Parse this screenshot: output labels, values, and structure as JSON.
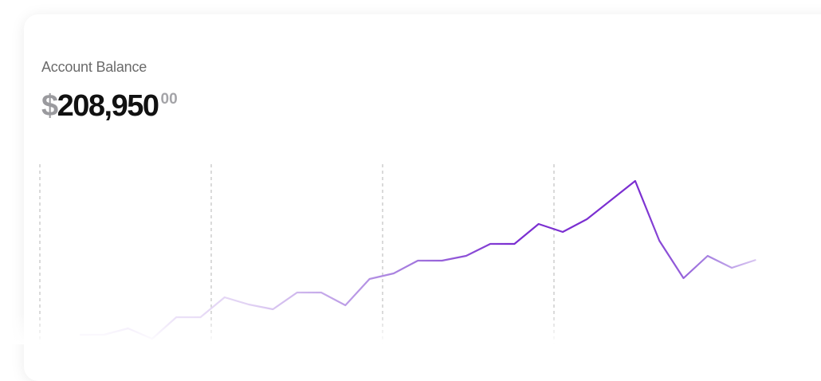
{
  "chart_data": {
    "type": "line",
    "title": "Account Balance",
    "currency": "$",
    "amount": "208,950",
    "cents": "00",
    "values": [
      12,
      12,
      20,
      7,
      34,
      34,
      59,
      50,
      44,
      65,
      65,
      49,
      82,
      89,
      105,
      105,
      111,
      126,
      126,
      151,
      141,
      157,
      181,
      205,
      130,
      83,
      111,
      96,
      106
    ],
    "ylim": [
      0,
      220
    ],
    "color": "#7b2fd1"
  }
}
